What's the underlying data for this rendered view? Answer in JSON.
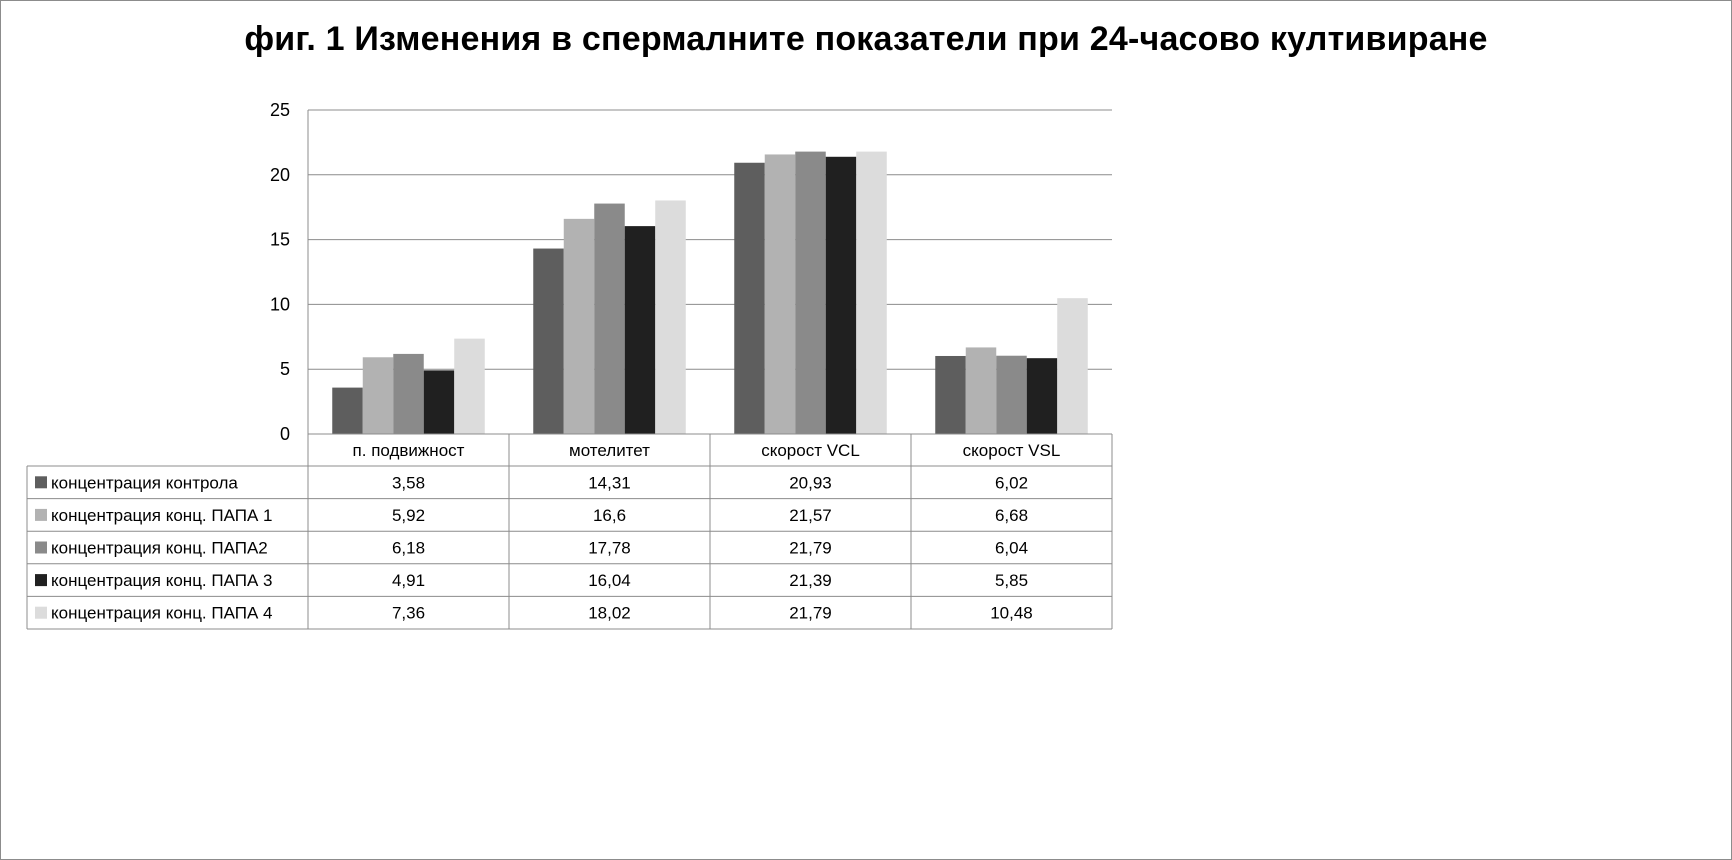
{
  "chart_data": {
    "type": "bar",
    "title": "фиг. 1  Изменения в спермалните показатели при 24-часово култивиране",
    "xlabel": "",
    "ylabel": "",
    "ylim": [
      0,
      25
    ],
    "yticks": [
      0,
      5,
      10,
      15,
      20,
      25
    ],
    "grid": true,
    "legend": "data-table",
    "categories": [
      "п. подвижност",
      "мотелитет",
      "скорост VCL",
      "скорост VSL"
    ],
    "series": [
      {
        "name": "концентрация контрола",
        "color": "#5e5e5e",
        "values": [
          3.58,
          14.31,
          20.93,
          6.02
        ],
        "labels": [
          "3,58",
          "14,31",
          "20,93",
          "6,02"
        ]
      },
      {
        "name": "концентрация  конц. ПАПА 1",
        "color": "#b2b2b2",
        "values": [
          5.92,
          16.6,
          21.57,
          6.68
        ],
        "labels": [
          "5,92",
          "16,6",
          "21,57",
          "6,68"
        ]
      },
      {
        "name": "концентрация конц. ПАПА2",
        "color": "#8a8a8a",
        "values": [
          6.18,
          17.78,
          21.79,
          6.04
        ],
        "labels": [
          "6,18",
          "17,78",
          "21,79",
          "6,04"
        ]
      },
      {
        "name": "концентрация конц. ПАПА 3",
        "color": "#202020",
        "values": [
          4.91,
          16.04,
          21.39,
          5.85
        ],
        "labels": [
          "4,91",
          "16,04",
          "21,39",
          "5,85"
        ]
      },
      {
        "name": "концентрация конц. ПАПА 4",
        "color": "#dcdcdc",
        "values": [
          7.36,
          18.02,
          21.79,
          10.48
        ],
        "labels": [
          "7,36",
          "18,02",
          "21,79",
          "10,48"
        ]
      }
    ]
  }
}
